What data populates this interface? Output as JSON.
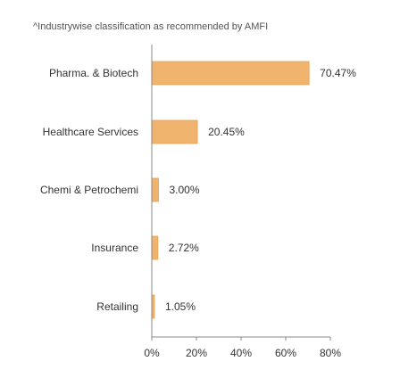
{
  "note": "^Industrywise classification as recommended by AMFI",
  "chart_data": {
    "type": "bar",
    "orientation": "horizontal",
    "categories": [
      "Pharma. & Biotech",
      "Healthcare Services",
      "Chemi & Petrochemi",
      "Insurance",
      "Retailing"
    ],
    "values": [
      70.47,
      20.45,
      3.0,
      2.72,
      1.05
    ],
    "value_labels": [
      "70.47%",
      "20.45%",
      "3.00%",
      "2.72%",
      "1.05%"
    ],
    "xlim": [
      0,
      80
    ],
    "xticks": [
      0,
      20,
      40,
      60,
      80
    ],
    "xtick_labels": [
      "0%",
      "20%",
      "40%",
      "60%",
      "80%"
    ],
    "grid": false,
    "bar_color": "#f0b46e",
    "bar_edge_color": "#e8a050",
    "axis_color": "#888888"
  }
}
